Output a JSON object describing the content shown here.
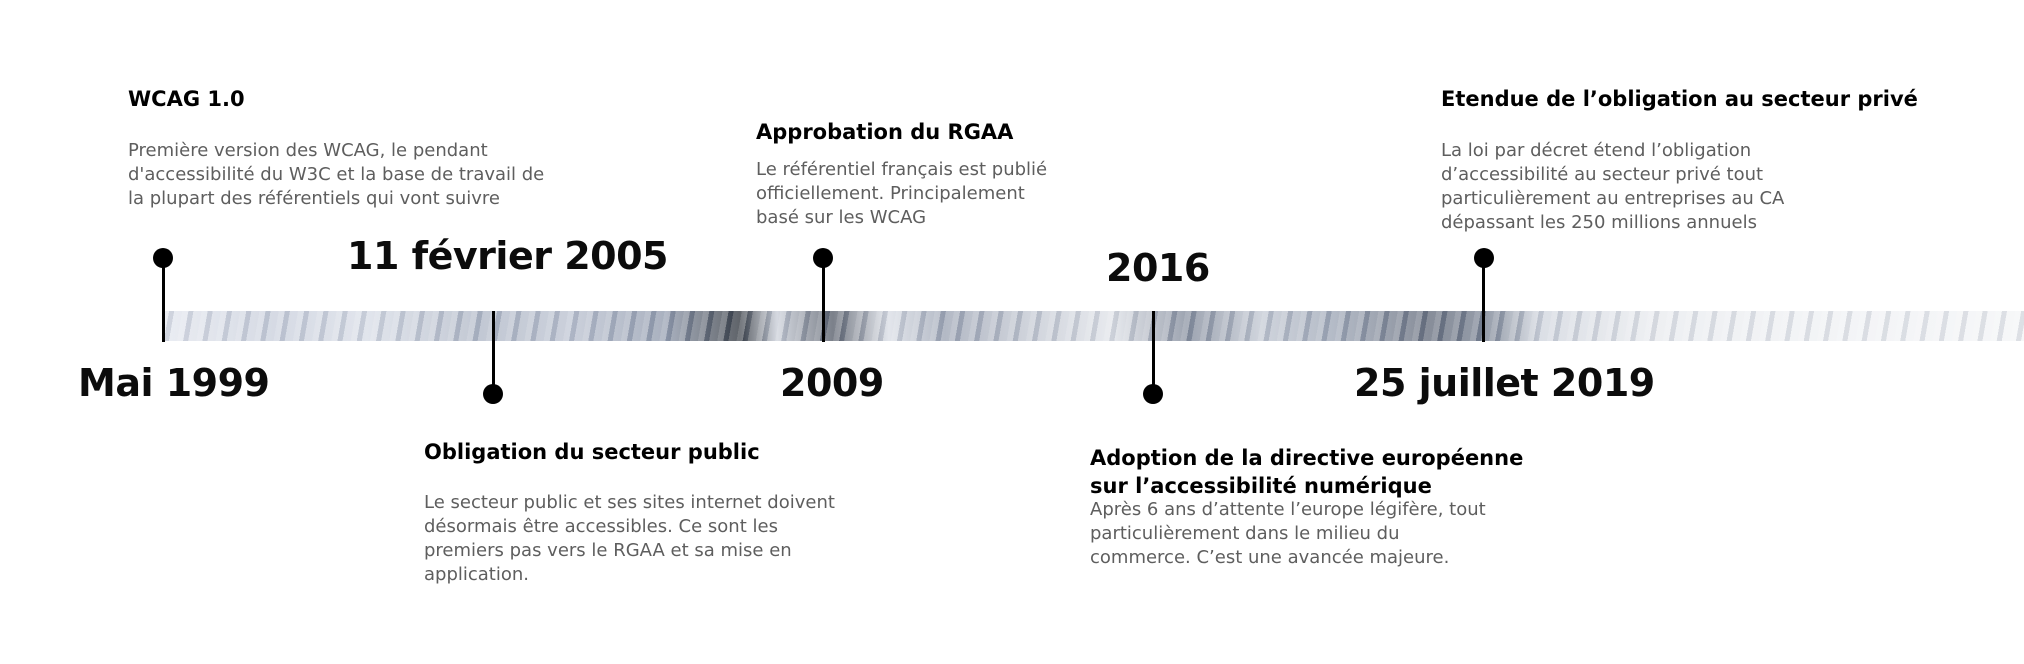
{
  "events": [
    {
      "date": "Mai 1999",
      "title": "WCAG 1.0",
      "lines": [
        "Première version des WCAG, le pendant",
        "d'accessibilité du W3C et la base de travail de",
        "la plupart des référentiels qui vont suivre"
      ]
    },
    {
      "date": "11 février 2005",
      "title": "Obligation du secteur public",
      "lines": [
        "Le secteur public et ses sites internet doivent",
        "désormais être accessibles. Ce sont les",
        "premiers pas vers le RGAA et  sa mise en",
        "application."
      ]
    },
    {
      "date": "2009",
      "title": "Approbation du RGAA",
      "lines": [
        "Le référentiel français est publié",
        "officiellement. Principalement",
        "basé sur les WCAG"
      ]
    },
    {
      "date": "2016",
      "title": "Adoption de la directive européenne sur l’accessibilité numérique",
      "title_lines": [
        "Adoption de la directive européenne",
        "sur l’accessibilité numérique"
      ],
      "lines": [
        "Après 6 ans d’attente l’europe légifère, tout",
        "particulièrement dans le milieu du",
        "commerce. C’est une avancée majeure."
      ]
    },
    {
      "date": "25 juillet 2019",
      "title": "Etendue de l’obligation au secteur privé",
      "lines": [
        "La loi par décret étend l’obligation",
        "d’accessibilité au secteur privé tout",
        "particulièrement au entreprises au CA",
        "dépassant les 250 millions annuels"
      ]
    }
  ]
}
